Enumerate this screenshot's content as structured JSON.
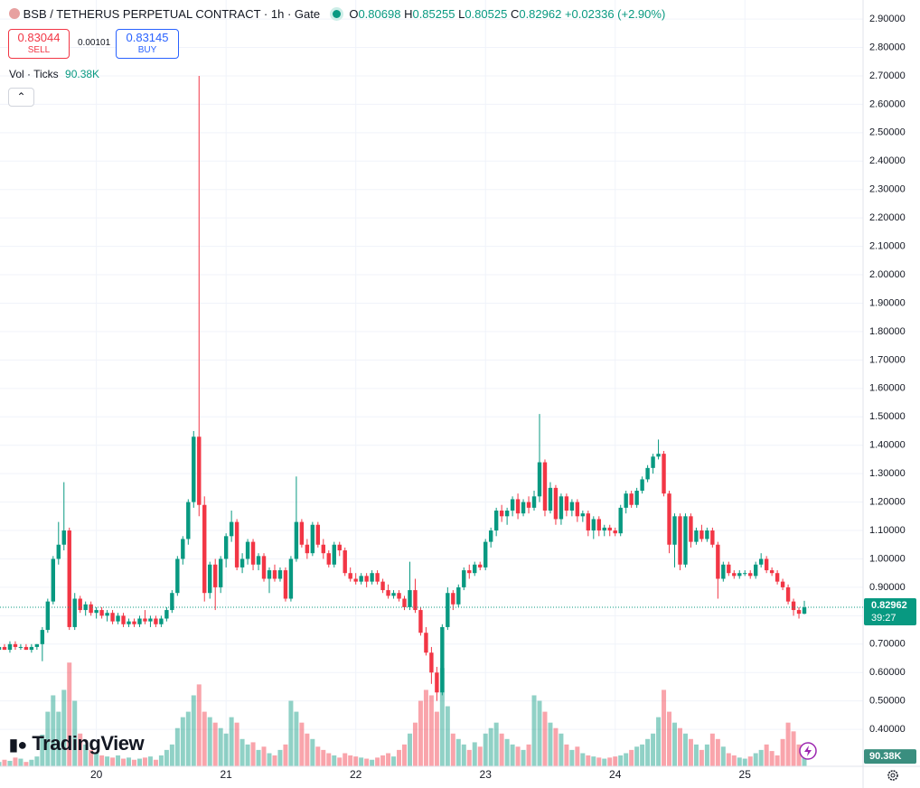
{
  "header": {
    "title": "BSB / TETHERUS PERPETUAL CONTRACT · 1h · Gate",
    "o": "O",
    "h": "H",
    "l": "L",
    "c": "C",
    "change": "+0.02336 (+2.90%)",
    "sell_price": "0.83044",
    "sell": "SELL",
    "spread": "0.00101",
    "buy_price": "0.83145",
    "buy": "BUY",
    "volume_title": "Vol · Ticks",
    "countdown": "39:27",
    "logo": "TradingView"
  },
  "chart_data": {
    "type": "candlestick",
    "up_color": "#089981",
    "down_color": "#f23645",
    "grid": true,
    "ylim": [
      0.27,
      2.967
    ],
    "yticks": [
      {
        "value": 0.4,
        "label": "0.40000"
      },
      {
        "value": 0.5,
        "label": "0.50000"
      },
      {
        "value": 0.6,
        "label": "0.60000"
      },
      {
        "value": 0.7,
        "label": "0.70000"
      },
      {
        "value": 0.8,
        "label": "0.80000"
      },
      {
        "value": 0.9,
        "label": "0.90000"
      },
      {
        "value": 1.0,
        "label": "1.00000"
      },
      {
        "value": 1.1,
        "label": "1.10000"
      },
      {
        "value": 1.2,
        "label": "1.20000"
      },
      {
        "value": 1.3,
        "label": "1.30000"
      },
      {
        "value": 1.4,
        "label": "1.40000"
      },
      {
        "value": 1.5,
        "label": "1.50000"
      },
      {
        "value": 1.6,
        "label": "1.60000"
      },
      {
        "value": 1.7,
        "label": "1.70000"
      },
      {
        "value": 1.8,
        "label": "1.80000"
      },
      {
        "value": 1.9,
        "label": "1.90000"
      },
      {
        "value": 2.0,
        "label": "2.00000"
      },
      {
        "value": 2.1,
        "label": "2.10000"
      },
      {
        "value": 2.2,
        "label": "2.20000"
      },
      {
        "value": 2.3,
        "label": "2.30000"
      },
      {
        "value": 2.4,
        "label": "2.40000"
      },
      {
        "value": 2.5,
        "label": "2.50000"
      },
      {
        "value": 2.6,
        "label": "2.60000"
      },
      {
        "value": 2.7,
        "label": "2.70000"
      },
      {
        "value": 2.8,
        "label": "2.80000"
      },
      {
        "value": 2.9,
        "label": "2.90000"
      }
    ],
    "volume_ylim": [
      0,
      2400000
    ],
    "volume_last_label": "90.38K",
    "categories": [
      null,
      null,
      null,
      null,
      null,
      null,
      null,
      null,
      null,
      null,
      null,
      null,
      null,
      null,
      null,
      null,
      null,
      null,
      "20",
      null,
      null,
      null,
      null,
      null,
      null,
      null,
      null,
      null,
      null,
      null,
      null,
      null,
      null,
      null,
      null,
      null,
      null,
      null,
      null,
      null,
      null,
      null,
      "21",
      null,
      null,
      null,
      null,
      null,
      null,
      null,
      null,
      null,
      null,
      null,
      null,
      null,
      null,
      null,
      null,
      null,
      null,
      null,
      null,
      null,
      null,
      null,
      "22",
      null,
      null,
      null,
      null,
      null,
      null,
      null,
      null,
      null,
      null,
      null,
      null,
      null,
      null,
      null,
      null,
      null,
      null,
      null,
      null,
      null,
      null,
      null,
      "23",
      null,
      null,
      null,
      null,
      null,
      null,
      null,
      null,
      null,
      null,
      null,
      null,
      null,
      null,
      null,
      null,
      null,
      null,
      null,
      null,
      null,
      null,
      null,
      "24",
      null,
      null,
      null,
      null,
      null,
      null,
      null,
      null,
      null,
      null,
      null,
      null,
      null,
      null,
      null,
      null,
      null,
      null,
      null,
      null,
      null,
      null,
      null,
      "25",
      null,
      null,
      null,
      null,
      null,
      null,
      null,
      null,
      null,
      null,
      null
    ],
    "open": [
      0.68,
      0.69,
      0.68,
      0.7,
      0.69,
      0.69,
      0.68,
      0.69,
      0.7,
      0.75,
      0.85,
      1.0,
      1.05,
      1.1,
      0.76,
      0.86,
      0.82,
      0.84,
      0.81,
      0.82,
      0.8,
      0.81,
      0.78,
      0.8,
      0.77,
      0.78,
      0.77,
      0.79,
      0.78,
      0.79,
      0.77,
      0.79,
      0.82,
      0.88,
      1.0,
      1.07,
      1.2,
      1.43,
      1.19,
      0.88,
      0.98,
      0.9,
      1.0,
      1.08,
      1.13,
      0.97,
      1.0,
      1.06,
      0.98,
      1.01,
      0.93,
      0.96,
      0.93,
      0.96,
      0.86,
      1.0,
      1.13,
      1.05,
      1.02,
      1.12,
      1.05,
      1.02,
      0.98,
      1.05,
      1.03,
      0.95,
      0.93,
      0.92,
      0.94,
      0.92,
      0.95,
      0.92,
      0.89,
      0.87,
      0.88,
      0.86,
      0.83,
      0.89,
      0.82,
      0.74,
      0.67,
      0.6,
      0.53,
      0.76,
      0.88,
      0.84,
      0.9,
      0.96,
      0.95,
      0.98,
      0.97,
      1.06,
      1.1,
      1.17,
      1.15,
      1.17,
      1.21,
      1.16,
      1.2,
      1.18,
      1.22,
      1.34,
      1.17,
      1.25,
      1.14,
      1.22,
      1.17,
      1.2,
      1.15,
      1.16,
      1.1,
      1.14,
      1.1,
      1.11,
      1.1,
      1.09,
      1.18,
      1.23,
      1.19,
      1.24,
      1.28,
      1.32,
      1.36,
      1.37,
      1.23,
      1.05,
      1.15,
      0.98,
      1.15,
      1.06,
      1.1,
      1.07,
      1.1,
      1.05,
      0.93,
      0.98,
      0.95,
      0.94,
      0.95,
      0.95,
      0.94,
      0.98,
      1.0,
      0.96,
      0.95,
      0.92,
      0.9,
      0.85,
      0.82,
      0.80698
    ],
    "high": [
      0.7,
      0.7,
      0.71,
      0.71,
      0.7,
      0.7,
      0.7,
      0.7,
      0.76,
      0.86,
      1.01,
      1.13,
      1.27,
      1.11,
      0.88,
      0.87,
      0.85,
      0.85,
      0.83,
      0.83,
      0.82,
      0.82,
      0.81,
      0.81,
      0.79,
      0.79,
      0.8,
      0.82,
      0.8,
      0.8,
      0.8,
      0.83,
      0.89,
      1.01,
      1.08,
      1.21,
      1.45,
      2.7,
      1.22,
      0.99,
      1.0,
      1.01,
      1.09,
      1.17,
      1.14,
      1.02,
      1.07,
      1.07,
      1.02,
      1.02,
      0.97,
      0.98,
      0.97,
      0.97,
      1.01,
      1.29,
      1.14,
      1.07,
      1.13,
      1.13,
      1.07,
      1.03,
      1.06,
      1.06,
      1.04,
      0.97,
      0.95,
      0.95,
      0.95,
      0.96,
      0.96,
      0.93,
      0.91,
      0.89,
      0.89,
      0.87,
      0.99,
      0.93,
      0.83,
      0.76,
      0.69,
      0.62,
      0.77,
      0.9,
      0.89,
      0.91,
      0.97,
      0.98,
      0.99,
      0.99,
      1.07,
      1.11,
      1.18,
      1.19,
      1.18,
      1.22,
      1.23,
      1.21,
      1.22,
      1.24,
      1.51,
      1.35,
      1.27,
      1.26,
      1.23,
      1.23,
      1.21,
      1.21,
      1.17,
      1.17,
      1.15,
      1.15,
      1.12,
      1.12,
      1.11,
      1.19,
      1.24,
      1.24,
      1.25,
      1.29,
      1.33,
      1.37,
      1.42,
      1.38,
      1.24,
      1.16,
      1.16,
      1.16,
      1.16,
      1.11,
      1.12,
      1.11,
      1.11,
      1.06,
      0.99,
      0.99,
      0.96,
      0.96,
      0.96,
      0.96,
      0.99,
      1.02,
      1.01,
      0.97,
      0.96,
      0.93,
      0.91,
      0.86,
      0.83,
      0.85255
    ],
    "low": [
      0.67,
      0.68,
      0.67,
      0.68,
      0.68,
      0.68,
      0.67,
      0.68,
      0.64,
      0.74,
      0.84,
      0.98,
      1.03,
      0.75,
      0.75,
      0.81,
      0.8,
      0.8,
      0.79,
      0.79,
      0.78,
      0.77,
      0.77,
      0.76,
      0.76,
      0.76,
      0.76,
      0.77,
      0.76,
      0.76,
      0.76,
      0.78,
      0.81,
      0.87,
      0.98,
      1.05,
      1.18,
      1.15,
      0.85,
      0.86,
      0.82,
      0.88,
      0.97,
      1.06,
      0.96,
      0.95,
      0.98,
      0.96,
      0.96,
      0.92,
      0.88,
      0.92,
      0.92,
      0.85,
      0.85,
      0.99,
      1.04,
      1.0,
      1.01,
      1.04,
      1.0,
      0.97,
      0.97,
      1.01,
      0.94,
      0.92,
      0.91,
      0.91,
      0.9,
      0.91,
      0.91,
      0.88,
      0.86,
      0.86,
      0.85,
      0.82,
      0.82,
      0.81,
      0.73,
      0.66,
      0.56,
      0.5,
      0.52,
      0.75,
      0.82,
      0.83,
      0.89,
      0.93,
      0.94,
      0.96,
      0.96,
      1.04,
      1.08,
      1.13,
      1.12,
      1.15,
      1.14,
      1.15,
      1.16,
      1.17,
      1.2,
      1.15,
      1.16,
      1.12,
      1.12,
      1.15,
      1.15,
      1.13,
      1.13,
      1.08,
      1.07,
      1.08,
      1.08,
      1.08,
      1.08,
      1.08,
      1.16,
      1.18,
      1.18,
      1.23,
      1.27,
      1.3,
      1.35,
      1.22,
      1.02,
      0.97,
      0.96,
      0.97,
      1.04,
      1.05,
      1.06,
      1.06,
      1.04,
      0.86,
      0.92,
      0.94,
      0.93,
      0.93,
      0.94,
      0.93,
      0.93,
      0.97,
      0.95,
      0.94,
      0.91,
      0.89,
      0.84,
      0.8,
      0.79,
      0.80525
    ],
    "close": [
      0.69,
      0.68,
      0.7,
      0.69,
      0.69,
      0.68,
      0.69,
      0.7,
      0.75,
      0.85,
      1.0,
      1.05,
      1.1,
      0.76,
      0.86,
      0.82,
      0.84,
      0.81,
      0.82,
      0.8,
      0.81,
      0.78,
      0.8,
      0.77,
      0.78,
      0.77,
      0.79,
      0.78,
      0.79,
      0.77,
      0.79,
      0.82,
      0.88,
      1.0,
      1.07,
      1.2,
      1.43,
      1.19,
      0.88,
      0.98,
      0.9,
      1.0,
      1.08,
      1.13,
      0.97,
      1.0,
      1.06,
      0.98,
      1.01,
      0.93,
      0.96,
      0.93,
      0.96,
      0.86,
      1.0,
      1.13,
      1.05,
      1.02,
      1.12,
      1.05,
      1.02,
      0.98,
      1.05,
      1.03,
      0.95,
      0.93,
      0.92,
      0.94,
      0.92,
      0.95,
      0.92,
      0.89,
      0.87,
      0.88,
      0.86,
      0.83,
      0.89,
      0.82,
      0.74,
      0.67,
      0.6,
      0.53,
      0.76,
      0.88,
      0.84,
      0.9,
      0.96,
      0.95,
      0.98,
      0.97,
      1.06,
      1.1,
      1.17,
      1.15,
      1.17,
      1.21,
      1.16,
      1.2,
      1.18,
      1.22,
      1.34,
      1.17,
      1.25,
      1.14,
      1.22,
      1.17,
      1.2,
      1.15,
      1.16,
      1.1,
      1.14,
      1.1,
      1.11,
      1.1,
      1.09,
      1.18,
      1.23,
      1.19,
      1.24,
      1.28,
      1.32,
      1.36,
      1.37,
      1.23,
      1.05,
      1.15,
      0.98,
      1.15,
      1.06,
      1.1,
      1.07,
      1.1,
      1.05,
      0.93,
      0.98,
      0.95,
      0.94,
      0.95,
      0.95,
      0.94,
      0.98,
      1.0,
      0.96,
      0.95,
      0.92,
      0.9,
      0.85,
      0.82,
      0.80698,
      0.82962
    ],
    "volume": [
      40000,
      60000,
      50000,
      80000,
      70000,
      40000,
      60000,
      90000,
      290000,
      500000,
      650000,
      500000,
      700000,
      950000,
      600000,
      300000,
      200000,
      150000,
      120000,
      100000,
      90000,
      80000,
      100000,
      70000,
      80000,
      60000,
      70000,
      80000,
      90000,
      60000,
      100000,
      150000,
      200000,
      350000,
      450000,
      500000,
      650000,
      750000,
      500000,
      450000,
      400000,
      350000,
      300000,
      450000,
      400000,
      250000,
      200000,
      220000,
      150000,
      180000,
      120000,
      100000,
      150000,
      200000,
      600000,
      500000,
      400000,
      300000,
      250000,
      180000,
      150000,
      120000,
      100000,
      80000,
      120000,
      100000,
      90000,
      80000,
      70000,
      60000,
      80000,
      100000,
      120000,
      90000,
      150000,
      200000,
      300000,
      400000,
      600000,
      700000,
      650000,
      500000,
      900000,
      550000,
      300000,
      250000,
      200000,
      150000,
      220000,
      180000,
      300000,
      350000,
      400000,
      300000,
      250000,
      200000,
      180000,
      150000,
      200000,
      650000,
      600000,
      500000,
      400000,
      350000,
      300000,
      200000,
      150000,
      180000,
      120000,
      100000,
      90000,
      80000,
      70000,
      80000,
      90000,
      100000,
      120000,
      150000,
      180000,
      200000,
      250000,
      300000,
      450000,
      700000,
      500000,
      400000,
      350000,
      300000,
      250000,
      200000,
      150000,
      200000,
      300000,
      250000,
      180000,
      120000,
      100000,
      80000,
      70000,
      90000,
      120000,
      150000,
      200000,
      140000,
      100000,
      250000,
      400000,
      320000,
      200000,
      90380
    ]
  }
}
